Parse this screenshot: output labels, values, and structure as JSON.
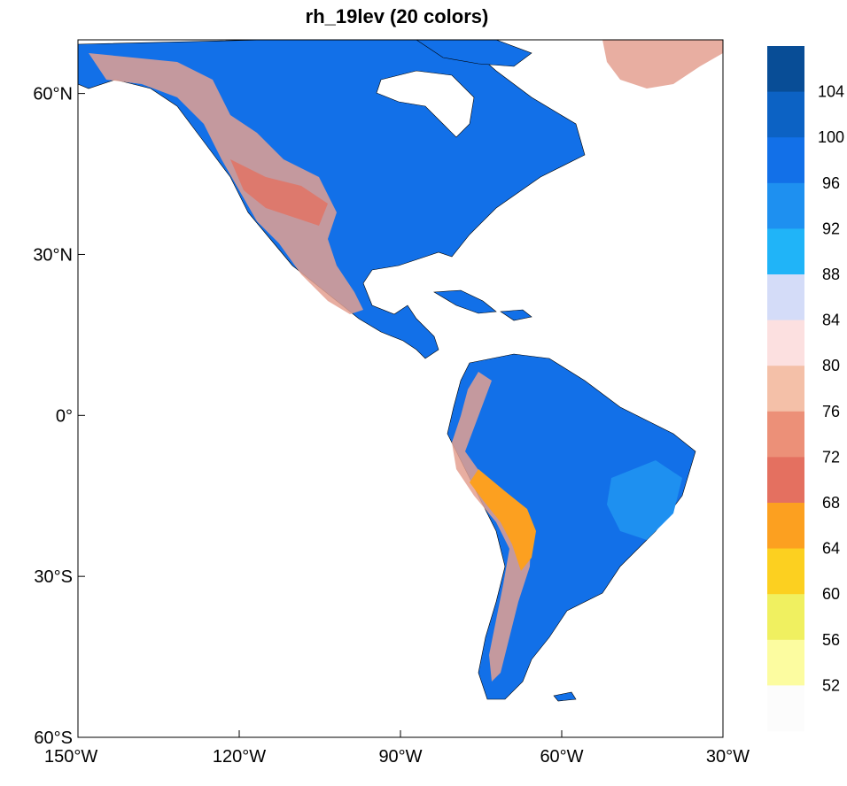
{
  "title": "rh_19lev (20 colors)",
  "map": {
    "lon_range": [
      -150,
      -30
    ],
    "lat_range": [
      -60,
      70
    ],
    "x_ticks": [
      {
        "lon": -150,
        "label": "150°W"
      },
      {
        "lon": -120,
        "label": "120°W"
      },
      {
        "lon": -90,
        "label": "90°W"
      },
      {
        "lon": -60,
        "label": "60°W"
      },
      {
        "lon": -30,
        "label": "30°W"
      }
    ],
    "y_ticks": [
      {
        "lat": 60,
        "label": "60°N"
      },
      {
        "lat": 30,
        "label": "30°N"
      },
      {
        "lat": 0,
        "label": "0°"
      },
      {
        "lat": -30,
        "label": "30°S"
      },
      {
        "lat": -60,
        "label": "60°S"
      }
    ]
  },
  "colorbar": {
    "colors": [
      "#084d96",
      "#0c62c4",
      "#1270e8",
      "#1e90f0",
      "#20b4f8",
      "#d4dcf8",
      "#fce0e0",
      "#f4c0a8",
      "#ec9078",
      "#e47060",
      "#fca020",
      "#fcd020",
      "#f0f060",
      "#fcfca0",
      "#fcfcfc"
    ],
    "labels": [
      "104",
      "100",
      "96",
      "92",
      "88",
      "84",
      "80",
      "76",
      "72",
      "68",
      "64",
      "60",
      "56",
      "52"
    ]
  },
  "layers": {
    "ocean_color": "#ffffff",
    "land_color": "#1270e8",
    "high_terrain_color": "#e4a090",
    "plateau_color": "#fca020",
    "coast_color": "#000000"
  }
}
